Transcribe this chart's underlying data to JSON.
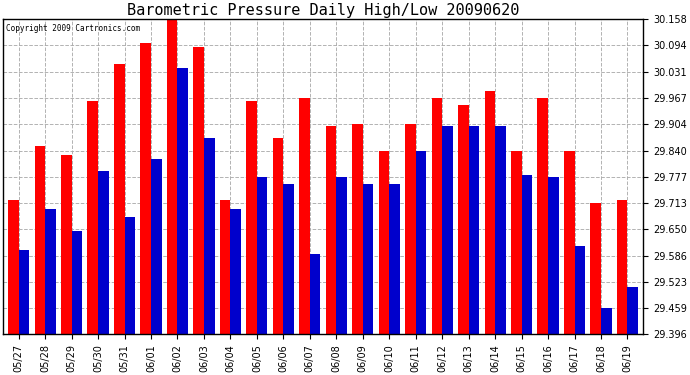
{
  "title": "Barometric Pressure Daily High/Low 20090620",
  "copyright_text": "Copyright 2009 Cartronics.com",
  "dates": [
    "05/27",
    "05/28",
    "05/29",
    "05/30",
    "05/31",
    "06/01",
    "06/02",
    "06/03",
    "06/04",
    "06/05",
    "06/06",
    "06/07",
    "06/08",
    "06/09",
    "06/10",
    "06/11",
    "06/12",
    "06/13",
    "06/14",
    "06/15",
    "06/16",
    "06/17",
    "06/18",
    "06/19"
  ],
  "highs": [
    29.72,
    29.85,
    29.83,
    29.96,
    30.05,
    30.1,
    30.158,
    30.09,
    29.72,
    29.96,
    29.87,
    29.967,
    29.9,
    29.904,
    29.84,
    29.904,
    29.967,
    29.95,
    29.985,
    29.84,
    29.967,
    29.84,
    29.713,
    29.72
  ],
  "lows": [
    29.6,
    29.7,
    29.645,
    29.79,
    29.68,
    29.82,
    30.04,
    29.87,
    29.7,
    29.777,
    29.76,
    29.59,
    29.777,
    29.76,
    29.76,
    29.84,
    29.9,
    29.9,
    29.9,
    29.78,
    29.777,
    29.61,
    29.459,
    29.51
  ],
  "bar_color_high": "#FF0000",
  "bar_color_low": "#0000CC",
  "background_color": "#FFFFFF",
  "grid_color": "#AAAAAA",
  "ymin": 29.396,
  "ymax": 30.158,
  "yticks": [
    29.396,
    29.459,
    29.523,
    29.586,
    29.65,
    29.713,
    29.777,
    29.84,
    29.904,
    29.967,
    30.031,
    30.094,
    30.158
  ],
  "title_fontsize": 11,
  "tick_fontsize": 7,
  "bar_width": 0.4,
  "figwidth": 6.9,
  "figheight": 3.75,
  "dpi": 100
}
